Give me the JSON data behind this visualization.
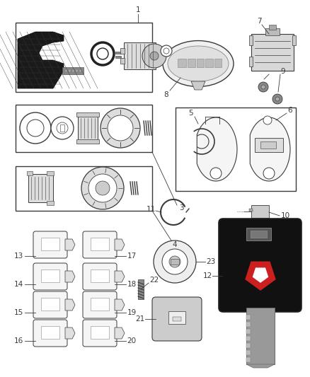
{
  "background": "#ffffff",
  "figsize": [
    4.39,
    5.33
  ],
  "dpi": 100,
  "gray": "#3a3a3a",
  "lgray": "#888888",
  "black": "#111111"
}
